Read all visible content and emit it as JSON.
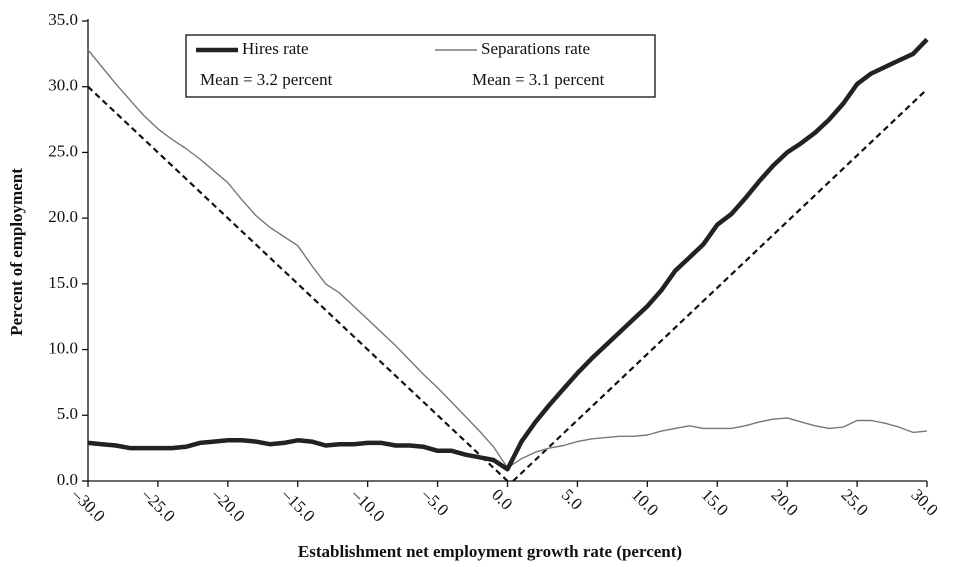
{
  "chart_data": {
    "type": "line",
    "x_label": "Establishment net employment growth rate (percent)",
    "y_label": "Percent of employment",
    "x": [
      -30,
      -29,
      -28,
      -27,
      -26,
      -25,
      -24,
      -23,
      -22,
      -21,
      -20,
      -19,
      -18,
      -17,
      -16,
      -15,
      -14,
      -13,
      -12,
      -11,
      -10,
      -9,
      -8,
      -7,
      -6,
      -5,
      -4,
      -3,
      -2,
      -1,
      0,
      1,
      2,
      3,
      4,
      5,
      6,
      7,
      8,
      9,
      10,
      11,
      12,
      13,
      14,
      15,
      16,
      17,
      18,
      19,
      20,
      21,
      22,
      23,
      24,
      25,
      26,
      27,
      28,
      29,
      30
    ],
    "series": [
      {
        "name": "Hires rate",
        "mean_label": "Mean = 3.2 percent",
        "color": "#222222",
        "width": 4.5,
        "values": [
          2.9,
          2.8,
          2.7,
          2.5,
          2.5,
          2.5,
          2.5,
          2.6,
          2.9,
          3.0,
          3.1,
          3.1,
          3.0,
          2.8,
          2.9,
          3.1,
          3.0,
          2.7,
          2.8,
          2.8,
          2.9,
          2.9,
          2.7,
          2.7,
          2.6,
          2.3,
          2.3,
          2.0,
          1.8,
          1.6,
          0.9,
          3.0,
          4.5,
          5.8,
          7.0,
          8.2,
          9.3,
          10.3,
          11.3,
          12.3,
          13.3,
          14.5,
          16.0,
          17.0,
          18.0,
          19.5,
          20.3,
          21.5,
          22.8,
          24.0,
          25.0,
          25.7,
          26.5,
          27.5,
          28.7,
          30.2,
          31.0,
          31.5,
          32.0,
          32.5,
          33.6
        ]
      },
      {
        "name": "Separations rate",
        "mean_label": "Mean = 3.1 percent",
        "color": "#777777",
        "width": 1.4,
        "values": [
          32.8,
          31.5,
          30.2,
          29.0,
          27.8,
          26.8,
          26.0,
          25.3,
          24.5,
          23.6,
          22.7,
          21.4,
          20.2,
          19.3,
          18.6,
          17.9,
          16.4,
          15.0,
          14.3,
          13.3,
          12.3,
          11.3,
          10.3,
          9.2,
          8.1,
          7.1,
          6.0,
          4.9,
          3.8,
          2.6,
          1.0,
          1.7,
          2.2,
          2.5,
          2.7,
          3.0,
          3.2,
          3.3,
          3.4,
          3.4,
          3.5,
          3.8,
          4.0,
          4.2,
          4.0,
          4.0,
          4.0,
          4.2,
          4.5,
          4.7,
          4.8,
          4.5,
          4.2,
          4.0,
          4.1,
          4.6,
          4.6,
          4.4,
          4.1,
          3.7,
          3.8
        ]
      }
    ],
    "reference_lines": [
      {
        "x": [
          -30,
          0
        ],
        "values": [
          30,
          0
        ],
        "color": "#111111",
        "dashed": true
      },
      {
        "x": [
          0.4,
          30
        ],
        "values": [
          0,
          29.8
        ],
        "color": "#111111",
        "dashed": true
      }
    ],
    "xlim": [
      -30,
      30
    ],
    "ylim": [
      0,
      35
    ],
    "xticks": [
      {
        "value": -30,
        "label": "–30.0"
      },
      {
        "value": -25,
        "label": "–25.0"
      },
      {
        "value": -20,
        "label": "–20.0"
      },
      {
        "value": -15,
        "label": "–15.0"
      },
      {
        "value": -10,
        "label": "–10.0"
      },
      {
        "value": -5,
        "label": "–5.0"
      },
      {
        "value": 0,
        "label": "0.0"
      },
      {
        "value": 5,
        "label": "5.0"
      },
      {
        "value": 10,
        "label": "10.0"
      },
      {
        "value": 15,
        "label": "15.0"
      },
      {
        "value": 20,
        "label": "20.0"
      },
      {
        "value": 25,
        "label": "25.0"
      },
      {
        "value": 30,
        "label": "30.0"
      }
    ],
    "yticks": [
      {
        "value": 0,
        "label": "0.0"
      },
      {
        "value": 5,
        "label": "5.0"
      },
      {
        "value": 10,
        "label": "10.0"
      },
      {
        "value": 15,
        "label": "15.0"
      },
      {
        "value": 20,
        "label": "20.0"
      },
      {
        "value": 25,
        "label": "25.0"
      },
      {
        "value": 30,
        "label": "30.0"
      },
      {
        "value": 35,
        "label": "35.0"
      }
    ],
    "grid": false
  }
}
